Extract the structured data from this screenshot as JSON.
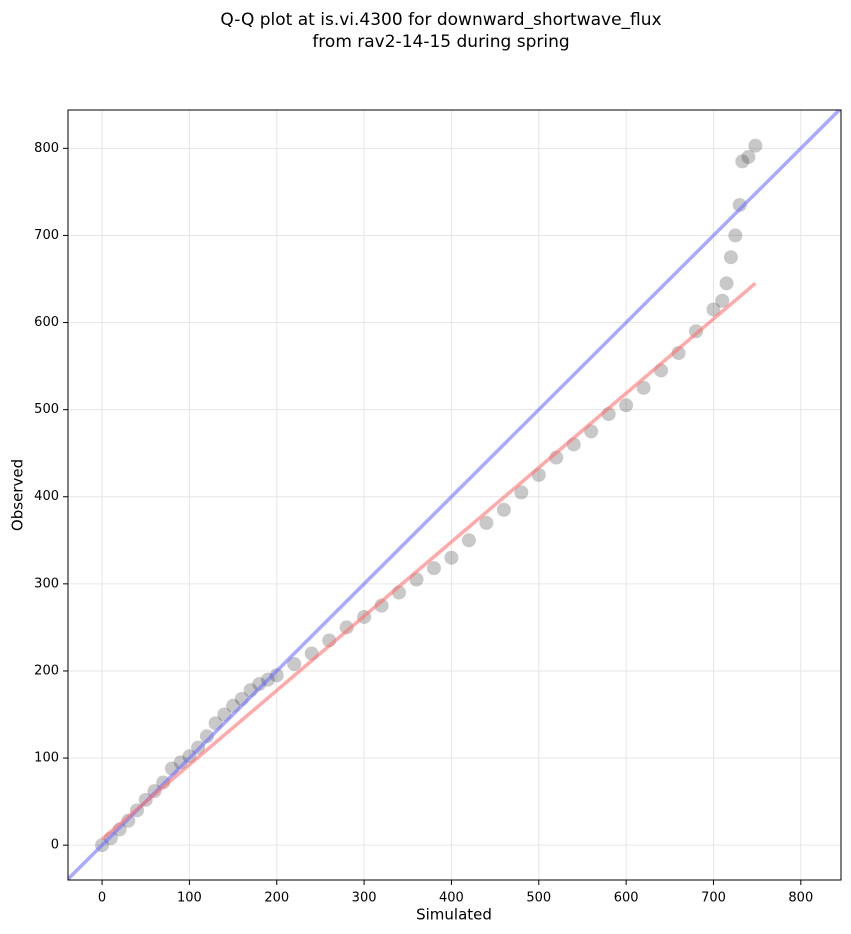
{
  "chart_data": {
    "type": "scatter",
    "title": [
      "Q-Q plot at is.vi.4300 for downward_shortwave_flux",
      "from rav2-14-15 during spring"
    ],
    "x_label": "Simulated",
    "y_label": "Observed",
    "xlim": [
      -39,
      846
    ],
    "ylim": [
      -40,
      844
    ],
    "xticks": [
      0,
      100,
      200,
      300,
      400,
      500,
      600,
      700,
      800
    ],
    "yticks": [
      0,
      100,
      200,
      300,
      400,
      500,
      600,
      700,
      800
    ],
    "grid": true,
    "points": {
      "color": "#222222",
      "x": [
        0,
        10,
        20,
        30,
        40,
        50,
        60,
        70,
        80,
        90,
        100,
        110,
        120,
        130,
        140,
        150,
        160,
        170,
        180,
        190,
        200,
        220,
        240,
        260,
        280,
        300,
        320,
        340,
        360,
        380,
        400,
        420,
        440,
        460,
        480,
        500,
        520,
        540,
        560,
        580,
        600,
        620,
        640,
        660,
        680,
        700,
        710,
        715,
        720,
        725,
        730,
        733,
        740,
        748
      ],
      "y": [
        0,
        8,
        18,
        28,
        40,
        52,
        62,
        72,
        88,
        95,
        102,
        112,
        125,
        140,
        150,
        160,
        168,
        178,
        185,
        190,
        195,
        208,
        220,
        235,
        250,
        262,
        275,
        290,
        305,
        318,
        330,
        350,
        370,
        385,
        405,
        425,
        445,
        460,
        475,
        495,
        505,
        525,
        545,
        565,
        590,
        615,
        625,
        645,
        675,
        700,
        735,
        785,
        790,
        803
      ]
    },
    "lines": [
      {
        "color": "#7070ff",
        "x": [
          -39,
          846
        ],
        "y": [
          -39,
          846
        ]
      },
      {
        "color": "#ff7070",
        "x": [
          0,
          748
        ],
        "y": [
          7,
          645
        ]
      }
    ]
  }
}
